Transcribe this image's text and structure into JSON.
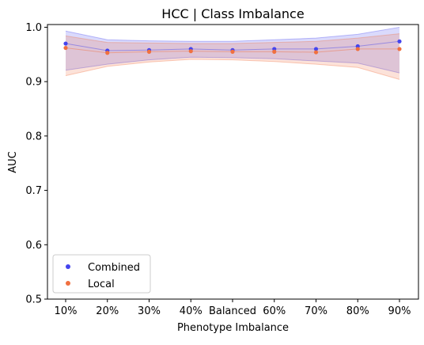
{
  "chart_data": {
    "type": "line",
    "title": "HCC | Class Imbalance",
    "xlabel": "Phenotype Imbalance",
    "ylabel": "AUC",
    "categories": [
      "10%",
      "20%",
      "30%",
      "40%",
      "Balanced",
      "60%",
      "70%",
      "80%",
      "90%"
    ],
    "ylim": [
      0.5,
      1.005
    ],
    "yticks": [
      "0.5",
      "0.6",
      "0.7",
      "0.8",
      "0.9",
      "1.0"
    ],
    "ytick_values": [
      0.5,
      0.6,
      0.7,
      0.8,
      0.9,
      1.0
    ],
    "grid": false,
    "legend_position": "bottom-left",
    "series": [
      {
        "name": "Combined",
        "color": "#4444ee",
        "values": [
          0.97,
          0.957,
          0.958,
          0.96,
          0.958,
          0.96,
          0.96,
          0.965,
          0.974
        ],
        "lower": [
          0.921,
          0.932,
          0.94,
          0.945,
          0.944,
          0.942,
          0.938,
          0.934,
          0.916
        ],
        "upper": [
          0.993,
          0.977,
          0.975,
          0.974,
          0.974,
          0.977,
          0.98,
          0.987,
          1.0
        ]
      },
      {
        "name": "Local",
        "color": "#f07040",
        "values": [
          0.962,
          0.953,
          0.955,
          0.956,
          0.955,
          0.955,
          0.954,
          0.96,
          0.96
        ],
        "lower": [
          0.911,
          0.928,
          0.936,
          0.941,
          0.94,
          0.937,
          0.932,
          0.926,
          0.904
        ],
        "upper": [
          0.984,
          0.972,
          0.971,
          0.97,
          0.97,
          0.972,
          0.974,
          0.98,
          0.988
        ]
      }
    ]
  }
}
